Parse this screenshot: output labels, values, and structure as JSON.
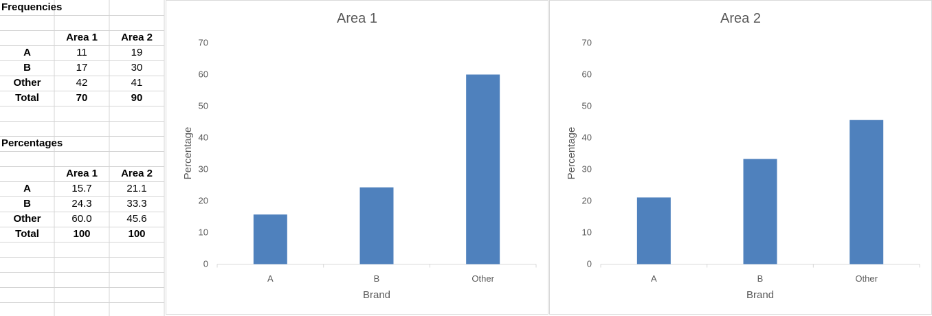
{
  "sheet": {
    "frequencies": {
      "title": "Frequencies",
      "headers": [
        "Area 1",
        "Area 2"
      ],
      "rows": [
        {
          "label": "A",
          "v1": "11",
          "v2": "19"
        },
        {
          "label": "B",
          "v1": "17",
          "v2": "30"
        },
        {
          "label": "Other",
          "v1": "42",
          "v2": "41"
        },
        {
          "label": "Total",
          "v1": "70",
          "v2": "90"
        }
      ]
    },
    "percentages": {
      "title": "Percentages",
      "headers": [
        "Area 1",
        "Area 2"
      ],
      "rows": [
        {
          "label": "A",
          "v1": "15.7",
          "v2": "21.1"
        },
        {
          "label": "B",
          "v1": "24.3",
          "v2": "33.3"
        },
        {
          "label": "Other",
          "v1": "60.0",
          "v2": "45.6"
        },
        {
          "label": "Total",
          "v1": "100",
          "v2": "100"
        }
      ]
    }
  },
  "colors": {
    "bar": "#4f81bd",
    "axis_text": "#595959",
    "gridline": "#d9d9d9"
  },
  "chart_data": [
    {
      "type": "bar",
      "title": "Area 1",
      "xlabel": "Brand",
      "ylabel": "Percentage",
      "categories": [
        "A",
        "B",
        "Other"
      ],
      "values": [
        15.7,
        24.3,
        60.0
      ],
      "ylim": [
        0,
        70
      ],
      "yticks": [
        0,
        10,
        20,
        30,
        40,
        50,
        60,
        70
      ],
      "grid": false
    },
    {
      "type": "bar",
      "title": "Area 2",
      "xlabel": "Brand",
      "ylabel": "Percentage",
      "categories": [
        "A",
        "B",
        "Other"
      ],
      "values": [
        21.1,
        33.3,
        45.6
      ],
      "ylim": [
        0,
        70
      ],
      "yticks": [
        0,
        10,
        20,
        30,
        40,
        50,
        60,
        70
      ],
      "grid": false
    }
  ]
}
